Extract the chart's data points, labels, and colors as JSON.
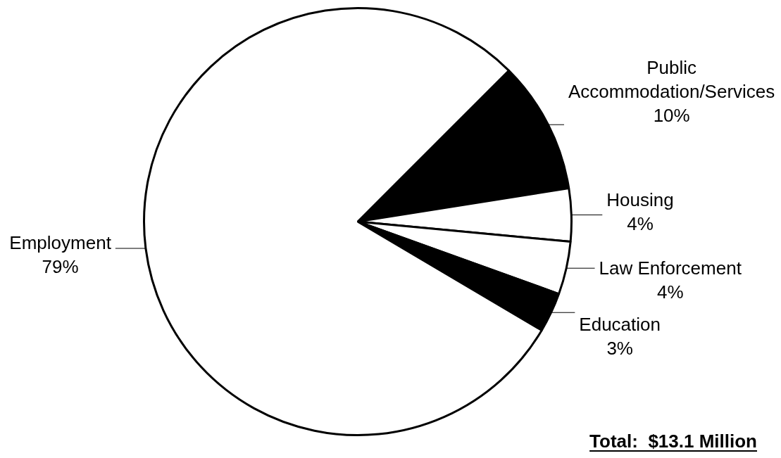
{
  "chart_data": {
    "type": "pie",
    "categories": [
      "Public Accommodation/Services",
      "Housing",
      "Law Enforcement",
      "Education",
      "Employment"
    ],
    "values": [
      10,
      4,
      4,
      3,
      79
    ],
    "colors": [
      "#000000",
      "#ffffff",
      "#ffffff",
      "#000000",
      "#ffffff"
    ],
    "value_labels": [
      "10%",
      "4%",
      "4%",
      "3%",
      "79%"
    ],
    "annotations": [
      "Total:  $13.1 Million"
    ]
  }
}
